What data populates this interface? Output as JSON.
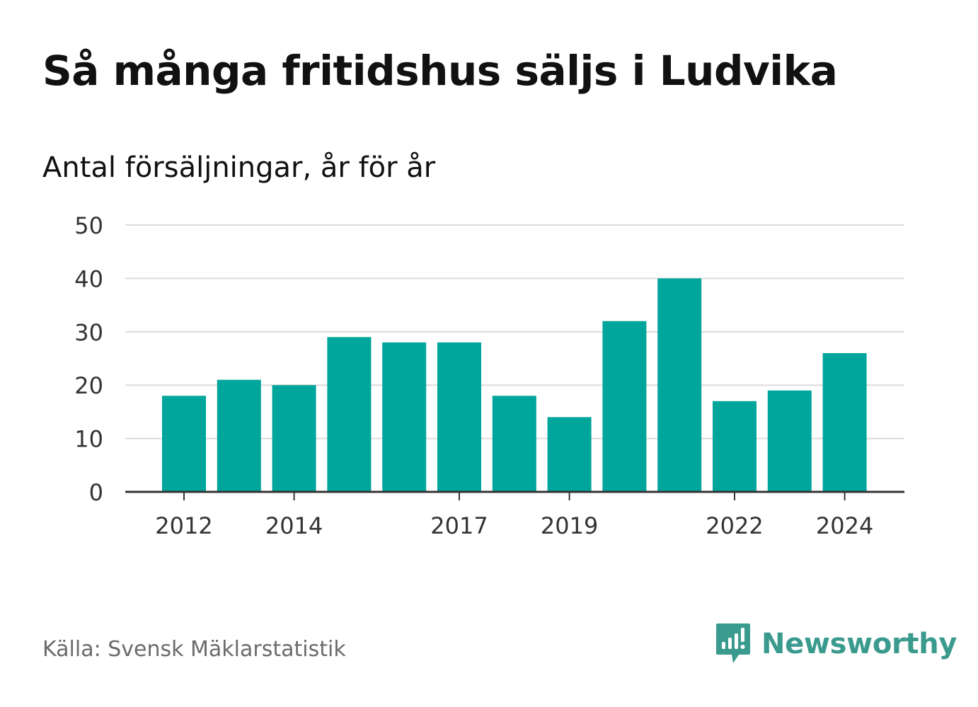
{
  "header": {
    "title": "Så många fritidshus säljs i Ludvika",
    "subtitle": "Antal försäljningar, år för år"
  },
  "footer": {
    "source": "Källa: Svensk Mäklarstatistik",
    "brand": "Newsworthy",
    "brand_icon": "bar-chart-speech-bubble-icon"
  },
  "colors": {
    "bar": "#00a59b",
    "grid": "#dcdcdc",
    "axis": "#333333",
    "tick_text": "#333333",
    "brand": "#3b9a8e"
  },
  "chart_data": {
    "type": "bar",
    "title": "Så många fritidshus säljs i Ludvika",
    "subtitle": "Antal försäljningar, år för år",
    "xlabel": "",
    "ylabel": "",
    "categories": [
      "2012",
      "2013",
      "2014",
      "2015",
      "2016",
      "2017",
      "2018",
      "2019",
      "2020",
      "2021",
      "2022",
      "2023",
      "2024"
    ],
    "values": [
      18,
      21,
      20,
      29,
      28,
      28,
      18,
      14,
      32,
      40,
      17,
      19,
      26
    ],
    "x_tick_labels": [
      "2012",
      "2014",
      "2017",
      "2019",
      "2022",
      "2024"
    ],
    "y_ticks": [
      0,
      10,
      20,
      30,
      40,
      50
    ],
    "ylim": [
      0,
      50
    ],
    "grid": true,
    "legend": "none"
  }
}
